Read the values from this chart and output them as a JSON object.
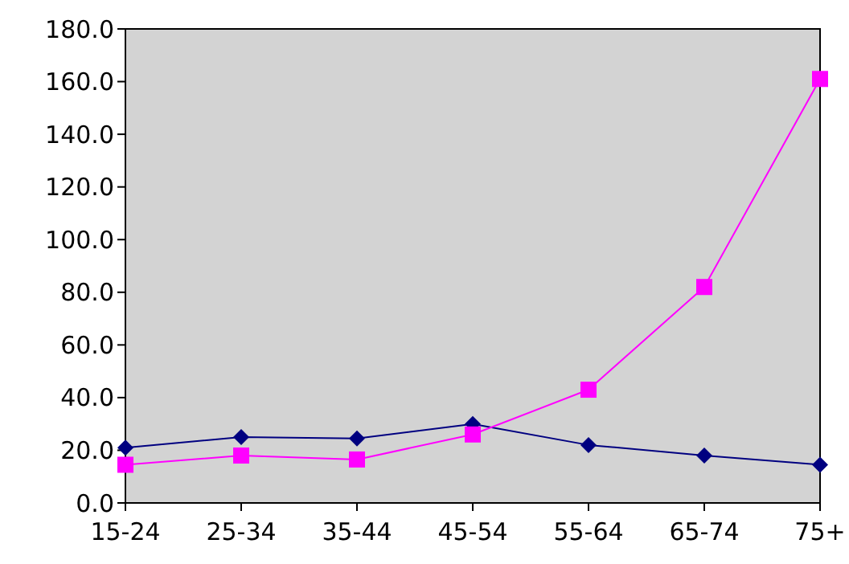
{
  "chart_data": {
    "type": "line",
    "categories": [
      "15-24",
      "25-34",
      "35-44",
      "45-54",
      "55-64",
      "65-74",
      "75+"
    ],
    "series": [
      {
        "color": "#000080",
        "marker": "diamond",
        "values": [
          21,
          25,
          24.5,
          30,
          22,
          18,
          14.5
        ]
      },
      {
        "color": "#ff00ff",
        "marker": "square",
        "values": [
          14.5,
          18,
          16.5,
          26,
          43,
          82,
          161
        ]
      }
    ],
    "ylim": [
      0,
      180
    ],
    "yticks": [
      {
        "value": 0,
        "label": "0.0"
      },
      {
        "value": 20,
        "label": "20.0"
      },
      {
        "value": 40,
        "label": "40.0"
      },
      {
        "value": 60,
        "label": "60.0"
      },
      {
        "value": 80,
        "label": "80.0"
      },
      {
        "value": 100,
        "label": "100.0"
      },
      {
        "value": 120,
        "label": "120.0"
      },
      {
        "value": 140,
        "label": "140.0"
      },
      {
        "value": 160,
        "label": "160.0"
      },
      {
        "value": 180,
        "label": "180.0"
      }
    ],
    "grid": false
  }
}
